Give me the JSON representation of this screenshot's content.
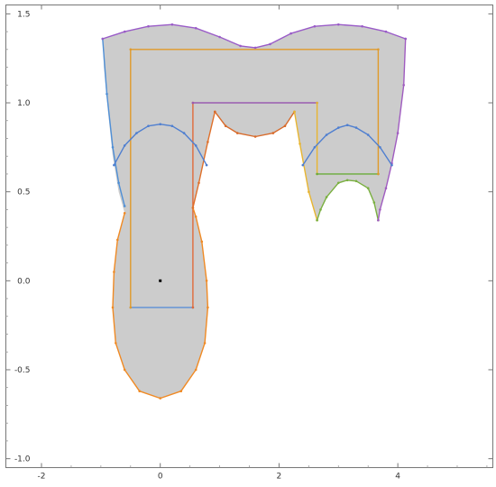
{
  "chart_data": {
    "type": "area",
    "title": "",
    "xlabel": "",
    "ylabel": "",
    "xlim": [
      -2.6,
      5.6
    ],
    "ylim": [
      -1.05,
      1.55
    ],
    "grid": false,
    "frame": true,
    "x_ticks": [
      {
        "value": -2,
        "label": "-2"
      },
      {
        "value": 0,
        "label": "0"
      },
      {
        "value": 2,
        "label": "2"
      },
      {
        "value": 4,
        "label": "4"
      }
    ],
    "y_ticks": [
      {
        "value": -1.0,
        "label": "-1.0"
      },
      {
        "value": -0.5,
        "label": "-0.5"
      },
      {
        "value": 0.0,
        "label": "0.0"
      },
      {
        "value": 0.5,
        "label": "0.5"
      },
      {
        "value": 1.0,
        "label": "1.0"
      },
      {
        "value": 1.5,
        "label": "1.5"
      }
    ],
    "region": {
      "fill": "#cccccc",
      "boundary": [
        [
          -0.97,
          1.36
        ],
        [
          -0.6,
          1.4
        ],
        [
          -0.2,
          1.43
        ],
        [
          0.2,
          1.44
        ],
        [
          0.6,
          1.42
        ],
        [
          1.0,
          1.37
        ],
        [
          1.35,
          1.32
        ],
        [
          1.6,
          1.31
        ],
        [
          1.85,
          1.33
        ],
        [
          2.2,
          1.39
        ],
        [
          2.6,
          1.43
        ],
        [
          3.0,
          1.44
        ],
        [
          3.4,
          1.43
        ],
        [
          3.8,
          1.4
        ],
        [
          4.13,
          1.36
        ],
        [
          4.1,
          1.1
        ],
        [
          4.0,
          0.83
        ],
        [
          3.9,
          0.66
        ],
        [
          3.8,
          0.52
        ],
        [
          3.7,
          0.4
        ],
        [
          3.67,
          0.34
        ],
        [
          3.6,
          0.44
        ],
        [
          3.5,
          0.52
        ],
        [
          3.3,
          0.56
        ],
        [
          3.15,
          0.565
        ],
        [
          3.0,
          0.55
        ],
        [
          2.8,
          0.47
        ],
        [
          2.7,
          0.4
        ],
        [
          2.64,
          0.34
        ],
        [
          2.5,
          0.5
        ],
        [
          2.35,
          0.77
        ],
        [
          2.26,
          0.95
        ],
        [
          2.1,
          0.87
        ],
        [
          1.9,
          0.83
        ],
        [
          1.6,
          0.81
        ],
        [
          1.3,
          0.83
        ],
        [
          1.1,
          0.87
        ],
        [
          0.92,
          0.95
        ],
        [
          0.8,
          0.78
        ],
        [
          0.65,
          0.55
        ],
        [
          0.55,
          0.41
        ],
        [
          0.6,
          0.36
        ],
        [
          0.7,
          0.22
        ],
        [
          0.78,
          0.0
        ],
        [
          0.8,
          -0.15
        ],
        [
          0.75,
          -0.35
        ],
        [
          0.6,
          -0.5
        ],
        [
          0.35,
          -0.62
        ],
        [
          0.0,
          -0.66
        ],
        [
          -0.35,
          -0.62
        ],
        [
          -0.6,
          -0.5
        ],
        [
          -0.75,
          -0.35
        ],
        [
          -0.8,
          -0.15
        ],
        [
          -0.78,
          0.05
        ],
        [
          -0.72,
          0.23
        ],
        [
          -0.6,
          0.38
        ],
        [
          -0.7,
          0.5
        ],
        [
          -0.8,
          0.7
        ],
        [
          -0.88,
          0.95
        ],
        [
          -0.95,
          1.2
        ]
      ]
    },
    "series": [
      {
        "color": "#5b8ed6",
        "points": [
          [
            -0.5,
            -0.15
          ],
          [
            0.55,
            -0.15
          ]
        ]
      },
      {
        "color": "#e06a3a",
        "points": [
          [
            0.55,
            -0.15
          ],
          [
            0.55,
            1.0
          ]
        ]
      },
      {
        "color": "#9a5cb0",
        "points": [
          [
            0.55,
            1.0
          ],
          [
            2.64,
            1.0
          ]
        ]
      },
      {
        "color": "#e8b530",
        "points": [
          [
            2.64,
            1.0
          ],
          [
            2.64,
            0.6
          ]
        ]
      },
      {
        "color": "#6aab3a",
        "points": [
          [
            2.64,
            0.6
          ],
          [
            3.67,
            0.6
          ]
        ]
      },
      {
        "color": "#e09a2a",
        "points": [
          [
            3.67,
            0.6
          ],
          [
            3.67,
            1.3
          ],
          [
            -0.5,
            1.3
          ],
          [
            -0.5,
            -0.15
          ]
        ]
      },
      {
        "color": "#4f8fd6",
        "points": [
          [
            -0.97,
            1.36
          ],
          [
            -0.9,
            1.05
          ],
          [
            -0.8,
            0.75
          ],
          [
            -0.7,
            0.55
          ],
          [
            -0.6,
            0.42
          ]
        ]
      },
      {
        "color": "#f08a24",
        "points": [
          [
            -0.6,
            0.38
          ],
          [
            -0.72,
            0.23
          ],
          [
            -0.78,
            0.05
          ],
          [
            -0.8,
            -0.15
          ],
          [
            -0.75,
            -0.35
          ],
          [
            -0.6,
            -0.5
          ],
          [
            -0.35,
            -0.62
          ],
          [
            0.0,
            -0.66
          ],
          [
            0.35,
            -0.62
          ],
          [
            0.6,
            -0.5
          ],
          [
            0.75,
            -0.35
          ],
          [
            0.8,
            -0.15
          ],
          [
            0.78,
            0.0
          ],
          [
            0.7,
            0.22
          ],
          [
            0.6,
            0.36
          ],
          [
            0.55,
            0.41
          ]
        ]
      },
      {
        "color": "#e0702a",
        "points": [
          [
            0.55,
            0.41
          ],
          [
            0.65,
            0.55
          ],
          [
            0.8,
            0.78
          ],
          [
            0.92,
            0.95
          ]
        ]
      },
      {
        "color": "#d86a2a",
        "points": [
          [
            0.92,
            0.95
          ],
          [
            1.1,
            0.87
          ],
          [
            1.3,
            0.83
          ],
          [
            1.6,
            0.81
          ],
          [
            1.9,
            0.83
          ],
          [
            2.1,
            0.87
          ],
          [
            2.26,
            0.95
          ]
        ]
      },
      {
        "color": "#e8b530",
        "points": [
          [
            2.26,
            0.95
          ],
          [
            2.35,
            0.77
          ],
          [
            2.5,
            0.5
          ],
          [
            2.64,
            0.34
          ]
        ]
      },
      {
        "color": "#7ab040",
        "points": [
          [
            2.64,
            0.34
          ],
          [
            2.7,
            0.4
          ],
          [
            2.8,
            0.47
          ],
          [
            3.0,
            0.55
          ],
          [
            3.15,
            0.565
          ],
          [
            3.3,
            0.56
          ],
          [
            3.5,
            0.52
          ],
          [
            3.6,
            0.44
          ],
          [
            3.67,
            0.34
          ]
        ]
      },
      {
        "color": "#a05cc0",
        "points": [
          [
            3.67,
            0.34
          ],
          [
            3.7,
            0.4
          ],
          [
            3.8,
            0.52
          ],
          [
            3.9,
            0.66
          ],
          [
            4.0,
            0.83
          ],
          [
            4.1,
            1.1
          ],
          [
            4.13,
            1.36
          ]
        ]
      },
      {
        "color": "#9a5cc8",
        "points": [
          [
            -0.97,
            1.36
          ],
          [
            -0.6,
            1.4
          ],
          [
            -0.2,
            1.43
          ],
          [
            0.2,
            1.44
          ],
          [
            0.6,
            1.42
          ],
          [
            1.0,
            1.37
          ],
          [
            1.35,
            1.32
          ],
          [
            1.6,
            1.31
          ],
          [
            1.85,
            1.33
          ],
          [
            2.2,
            1.39
          ],
          [
            2.6,
            1.43
          ],
          [
            3.0,
            1.44
          ],
          [
            3.4,
            1.43
          ],
          [
            3.8,
            1.4
          ],
          [
            4.13,
            1.36
          ]
        ]
      },
      {
        "color": "#4f7fd0",
        "points": [
          [
            -0.78,
            0.65
          ],
          [
            -0.6,
            0.76
          ],
          [
            -0.4,
            0.83
          ],
          [
            -0.2,
            0.87
          ],
          [
            0.0,
            0.88
          ],
          [
            0.2,
            0.87
          ],
          [
            0.4,
            0.83
          ],
          [
            0.6,
            0.76
          ],
          [
            0.78,
            0.65
          ]
        ]
      },
      {
        "color": "#4f7fd0",
        "points": [
          [
            2.4,
            0.65
          ],
          [
            2.6,
            0.75
          ],
          [
            2.8,
            0.82
          ],
          [
            3.0,
            0.86
          ],
          [
            3.15,
            0.875
          ],
          [
            3.3,
            0.86
          ],
          [
            3.5,
            0.82
          ],
          [
            3.7,
            0.75
          ],
          [
            3.9,
            0.65
          ]
        ]
      }
    ],
    "markers": [
      {
        "x": 0.0,
        "y": 0.0,
        "color": "#000000"
      }
    ]
  }
}
